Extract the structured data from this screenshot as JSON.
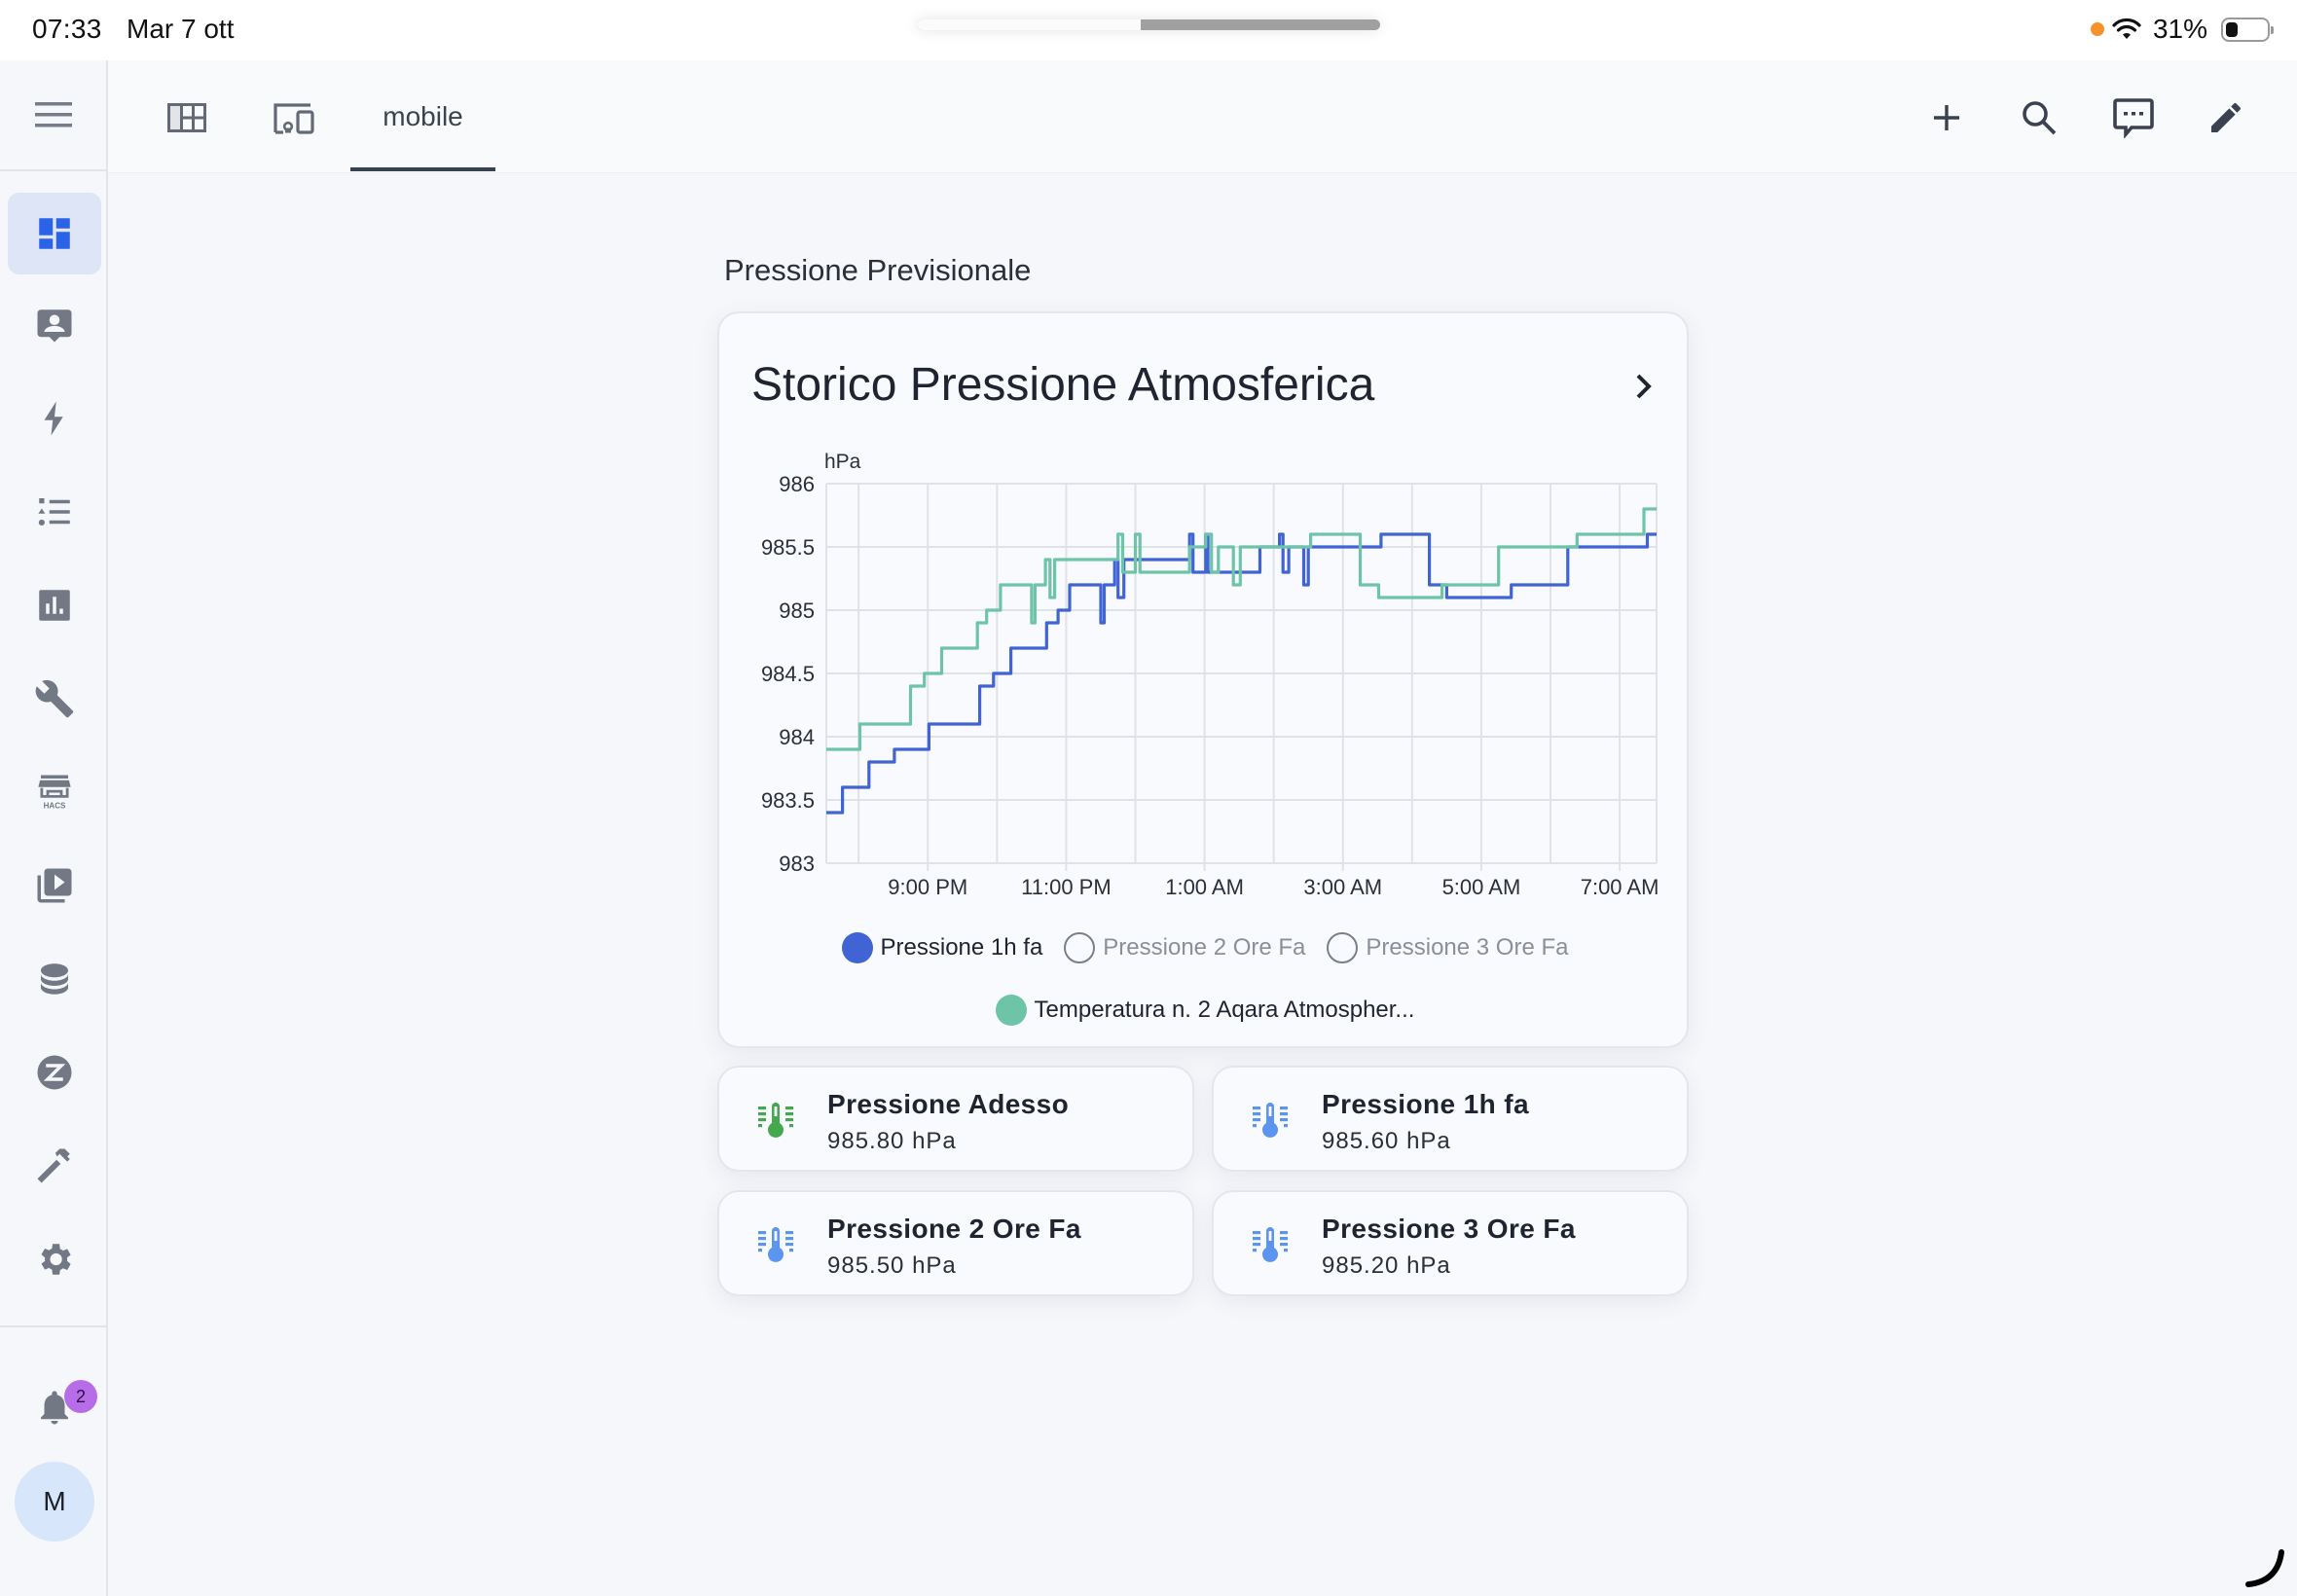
{
  "status_bar": {
    "time": "07:33",
    "date": "Mar 7 ott",
    "battery_percent": "31%",
    "indicator_color": "#f7922a"
  },
  "toolbar": {
    "view_tabs": [
      {
        "icon": "view-dashboard-outline-icon"
      },
      {
        "icon": "devices-icon"
      },
      {
        "label": "mobile",
        "active": true
      }
    ],
    "actions": [
      {
        "icon": "plus-icon",
        "name": "add"
      },
      {
        "icon": "search-icon",
        "name": "search"
      },
      {
        "icon": "assist-chat-icon",
        "name": "assist"
      },
      {
        "icon": "pencil-icon",
        "name": "edit"
      }
    ]
  },
  "sidebar": {
    "items": [
      {
        "icon": "dashboard-icon",
        "name": "overview",
        "active": true
      },
      {
        "icon": "account-box-icon",
        "name": "map-person"
      },
      {
        "icon": "lightning-icon",
        "name": "energy"
      },
      {
        "icon": "list-icon",
        "name": "logbook"
      },
      {
        "icon": "chart-box-icon",
        "name": "history"
      },
      {
        "icon": "wrench-icon",
        "name": "tools"
      },
      {
        "icon": "hacs-icon",
        "name": "hacs",
        "label": "HACS"
      },
      {
        "icon": "media-icon",
        "name": "media"
      },
      {
        "icon": "database-icon",
        "name": "database"
      },
      {
        "icon": "zwave-icon",
        "name": "z-wave"
      },
      {
        "icon": "hammer-icon",
        "name": "developer-tools"
      },
      {
        "icon": "gear-icon",
        "name": "settings"
      }
    ],
    "notifications_count": "2",
    "avatar_initial": "M",
    "active_color": "#2a63e6",
    "icon_color": "#727985"
  },
  "main": {
    "section_title": "Pressione Previsionale",
    "card": {
      "title": "Storico Pressione Atmosferica",
      "legend": [
        {
          "label": "Pressione 1h fa",
          "color": "#4064d4",
          "visible": true
        },
        {
          "label": "Pressione 2 Ore Fa",
          "color": "#7a7f88",
          "visible": false
        },
        {
          "label": "Pressione 3 Ore Fa",
          "color": "#7a7f88",
          "visible": false
        },
        {
          "label": "Temperatura n. 2 Aqara Atmospher...",
          "color": "#6ec4a7",
          "visible": true
        }
      ]
    },
    "tiles": [
      {
        "name": "Pressione Adesso",
        "value": "985.80 hPa",
        "icon_color": "#45a84f"
      },
      {
        "name": "Pressione 1h fa",
        "value": "985.60 hPa",
        "icon_color": "#5b95ef"
      },
      {
        "name": "Pressione 2 Ore Fa",
        "value": "985.50 hPa",
        "icon_color": "#5b95ef"
      },
      {
        "name": "Pressione 3 Ore Fa",
        "value": "985.20 hPa",
        "icon_color": "#5b95ef"
      }
    ]
  },
  "chart_data": {
    "type": "line",
    "step": true,
    "title": "Storico Pressione Atmosferica",
    "xlabel": "",
    "ylabel": "hPa",
    "ylim": [
      983,
      986
    ],
    "yticks": [
      983,
      983.5,
      984,
      984.5,
      985,
      985.5,
      986
    ],
    "ytick_labels": [
      "983",
      "983.5",
      "984",
      "984.5",
      "985",
      "985.5",
      "986"
    ],
    "xrange": [
      "19:32",
      "07:32"
    ],
    "xtick_labels": [
      "9:00 PM",
      "11:00 PM",
      "1:00 AM",
      "3:00 AM",
      "5:00 AM",
      "7:00 AM"
    ],
    "xtick_times": [
      "21:00",
      "23:00",
      "01:00",
      "03:00",
      "05:00",
      "07:00"
    ],
    "grid": true,
    "legend_position": "bottom",
    "series": [
      {
        "name": "Pressione 1h fa",
        "color": "#4064d4",
        "points": [
          [
            "19:32",
            983.4
          ],
          [
            "19:46",
            983.6
          ],
          [
            "20:09",
            983.8
          ],
          [
            "20:31",
            983.9
          ],
          [
            "21:01",
            984.1
          ],
          [
            "21:45",
            984.4
          ],
          [
            "21:57",
            984.5
          ],
          [
            "22:12",
            984.7
          ],
          [
            "22:43",
            984.9
          ],
          [
            "22:53",
            985.0
          ],
          [
            "23:03",
            985.2
          ],
          [
            "23:30",
            984.9
          ],
          [
            "23:33",
            985.2
          ],
          [
            "23:42",
            985.4
          ],
          [
            "23:45",
            985.1
          ],
          [
            "23:50",
            985.4
          ],
          [
            "00:47",
            985.6
          ],
          [
            "00:50",
            985.3
          ],
          [
            "01:01",
            985.6
          ],
          [
            "01:03",
            985.3
          ],
          [
            "01:48",
            985.5
          ],
          [
            "02:05",
            985.6
          ],
          [
            "02:08",
            985.3
          ],
          [
            "02:13",
            985.5
          ],
          [
            "02:26",
            985.2
          ],
          [
            "02:30",
            985.5
          ],
          [
            "03:33",
            985.6
          ],
          [
            "04:15",
            985.2
          ],
          [
            "04:30",
            985.1
          ],
          [
            "05:26",
            985.2
          ],
          [
            "06:15",
            985.5
          ],
          [
            "07:24",
            985.6
          ],
          [
            "07:32",
            985.6
          ]
        ]
      },
      {
        "name": "Pressione 2 Ore Fa",
        "color": "#7a7f88",
        "hidden": true,
        "points": []
      },
      {
        "name": "Pressione 3 Ore Fa",
        "color": "#7a7f88",
        "hidden": true,
        "points": []
      },
      {
        "name": "Temperatura n. 2 Aqara Atmospher...",
        "color": "#6ec4a7",
        "points": [
          [
            "19:32",
            983.9
          ],
          [
            "20:01",
            984.1
          ],
          [
            "20:45",
            984.4
          ],
          [
            "20:57",
            984.5
          ],
          [
            "21:12",
            984.7
          ],
          [
            "21:43",
            984.9
          ],
          [
            "21:51",
            985.0
          ],
          [
            "22:03",
            985.2
          ],
          [
            "22:30",
            984.9
          ],
          [
            "22:33",
            985.2
          ],
          [
            "22:42",
            985.4
          ],
          [
            "22:46",
            985.1
          ],
          [
            "22:50",
            985.4
          ],
          [
            "23:45",
            985.6
          ],
          [
            "23:49",
            985.3
          ],
          [
            "00:00",
            985.6
          ],
          [
            "00:04",
            985.3
          ],
          [
            "00:47",
            985.5
          ],
          [
            "01:01",
            985.6
          ],
          [
            "01:06",
            985.3
          ],
          [
            "01:12",
            985.5
          ],
          [
            "01:25",
            985.2
          ],
          [
            "01:31",
            985.5
          ],
          [
            "02:32",
            985.6
          ],
          [
            "03:15",
            985.2
          ],
          [
            "03:31",
            985.1
          ],
          [
            "04:26",
            985.2
          ],
          [
            "05:15",
            985.5
          ],
          [
            "06:23",
            985.6
          ],
          [
            "07:21",
            985.8
          ],
          [
            "07:32",
            985.8
          ]
        ]
      }
    ]
  }
}
